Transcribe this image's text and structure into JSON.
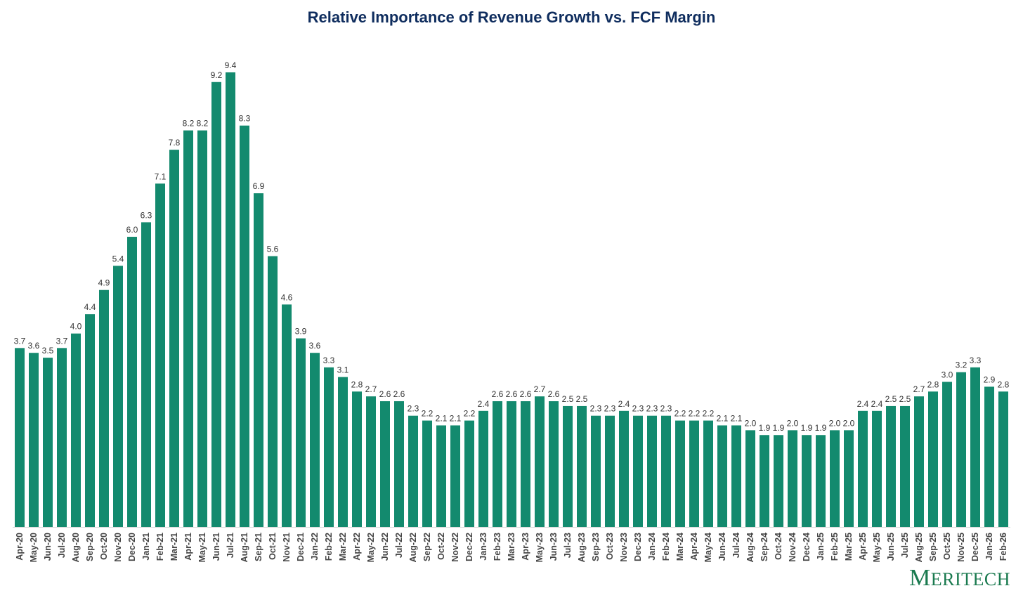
{
  "chart_data": {
    "type": "bar",
    "title": "Relative Importance of Revenue Growth vs. FCF Margin",
    "xlabel": "",
    "ylabel": "",
    "ylim": [
      0,
      9.4
    ],
    "grid": false,
    "bar_color": "#138a6e",
    "title_color": "#0f2d5e",
    "categories": [
      "Apr-20",
      "May-20",
      "Jun-20",
      "Jul-20",
      "Aug-20",
      "Sep-20",
      "Oct-20",
      "Nov-20",
      "Dec-20",
      "Jan-21",
      "Feb-21",
      "Mar-21",
      "Apr-21",
      "May-21",
      "Jun-21",
      "Jul-21",
      "Aug-21",
      "Sep-21",
      "Oct-21",
      "Nov-21",
      "Dec-21",
      "Jan-22",
      "Feb-22",
      "Mar-22",
      "Apr-22",
      "May-22",
      "Jun-22",
      "Jul-22",
      "Aug-22",
      "Sep-22",
      "Oct-22",
      "Nov-22",
      "Dec-22",
      "Jan-23",
      "Feb-23",
      "Mar-23",
      "Apr-23",
      "May-23",
      "Jun-23",
      "Jul-23",
      "Aug-23",
      "Sep-23",
      "Oct-23",
      "Nov-23",
      "Dec-23",
      "Jan-24",
      "Feb-24",
      "Mar-24",
      "Apr-24",
      "May-24",
      "Jun-24",
      "Jul-24",
      "Aug-24",
      "Sep-24",
      "Oct-24",
      "Nov-24",
      "Dec-24",
      "Jan-25",
      "Feb-25",
      "Mar-25",
      "Apr-25",
      "May-25",
      "Jun-25",
      "Jul-25",
      "Aug-25",
      "Sep-25",
      "Oct-25",
      "Nov-25",
      "Dec-25",
      "Jan-26",
      "Feb-26"
    ],
    "values": [
      3.7,
      3.6,
      3.5,
      3.7,
      4.0,
      4.4,
      4.9,
      5.4,
      6.0,
      6.3,
      7.1,
      7.8,
      8.2,
      8.2,
      9.2,
      9.4,
      8.3,
      6.9,
      5.6,
      4.6,
      3.9,
      3.6,
      3.3,
      3.1,
      2.8,
      2.7,
      2.6,
      2.6,
      2.3,
      2.2,
      2.1,
      2.1,
      2.2,
      2.4,
      2.6,
      2.6,
      2.6,
      2.7,
      2.6,
      2.5,
      2.5,
      2.3,
      2.3,
      2.4,
      2.3,
      2.3,
      2.3,
      2.2,
      2.2,
      2.2,
      2.1,
      2.1,
      2.0,
      1.9,
      1.9,
      2.0,
      1.9,
      1.9,
      2.0,
      2.0,
      2.4,
      2.4,
      2.5,
      2.5,
      2.7,
      2.8,
      3.0,
      3.2,
      3.3,
      2.9,
      2.8
    ]
  },
  "branding": {
    "logo_first": "M",
    "logo_rest": "ERITECH"
  }
}
